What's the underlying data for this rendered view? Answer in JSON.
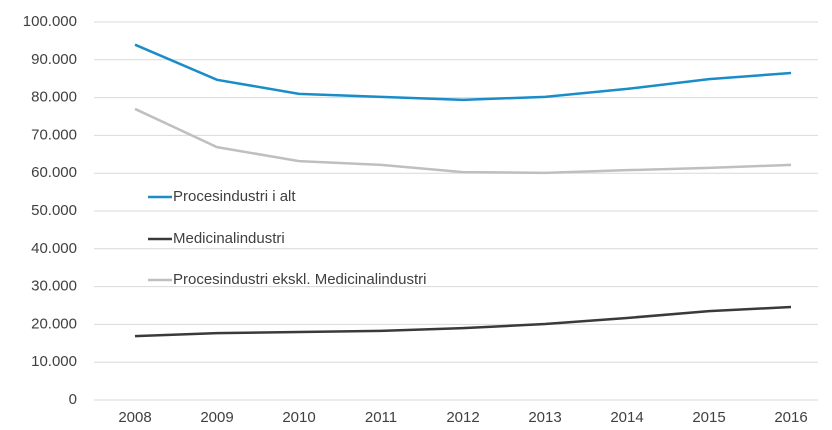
{
  "chart_data": {
    "type": "line",
    "categories": [
      "2008",
      "2009",
      "2010",
      "2011",
      "2012",
      "2013",
      "2014",
      "2015",
      "2016"
    ],
    "series": [
      {
        "name": "Procesindustri i alt",
        "color": "#1a8dc8",
        "values": [
          94000,
          84700,
          81000,
          80200,
          79400,
          80200,
          82300,
          84900,
          86500
        ]
      },
      {
        "name": "Medicinalindustri",
        "color": "#3a3a3a",
        "values": [
          16900,
          17700,
          18000,
          18300,
          19000,
          20100,
          21700,
          23500,
          24600
        ]
      },
      {
        "name": "Procesindustri ekskl. Medicinalindustri",
        "color": "#bfbfbf",
        "values": [
          77000,
          66900,
          63200,
          62200,
          60300,
          60100,
          60800,
          61400,
          62200
        ]
      }
    ],
    "ylim": [
      0,
      100000
    ],
    "yticks": [
      0,
      {
        "value": 10000,
        "label": "10.000"
      },
      {
        "value": 20000,
        "label": "20.000"
      },
      {
        "value": 30000,
        "label": "30.000"
      },
      {
        "value": 40000,
        "label": "40.000"
      },
      {
        "value": 50000,
        "label": "50.000"
      },
      {
        "value": 60000,
        "label": "60.000"
      },
      {
        "value": 70000,
        "label": "70.000"
      },
      {
        "value": 80000,
        "label": "80.000"
      },
      {
        "value": 90000,
        "label": "90.000"
      },
      {
        "value": 100000,
        "label": "100.000"
      }
    ],
    "grid": true,
    "legend": "inside-left"
  }
}
